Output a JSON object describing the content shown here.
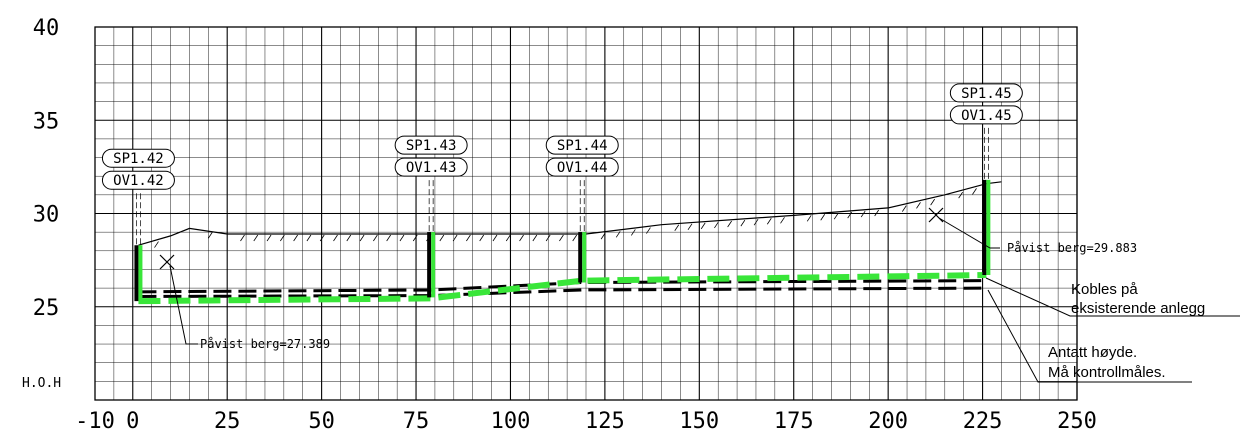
{
  "axes": {
    "x_range": [
      -10,
      250
    ],
    "y_range": [
      20,
      40
    ],
    "x_ticks": [
      "-10",
      "0",
      "25",
      "50",
      "75",
      "100",
      "125",
      "150",
      "175",
      "200",
      "225",
      "250"
    ],
    "y_ticks": [
      "40",
      "35",
      "30",
      "25"
    ],
    "y_unit_label": "H.O.H"
  },
  "manholes": [
    {
      "x": 1.5,
      "sp": "SP1.42",
      "ov": "OV1.42",
      "top": 28.3,
      "bottom": 25.3
    },
    {
      "x": 79,
      "sp": "SP1.43",
      "ov": "OV1.43",
      "top": 29.0,
      "bottom": 25.5
    },
    {
      "x": 119,
      "sp": "SP1.44",
      "ov": "OV1.44",
      "top": 29.0,
      "bottom": 26.3
    },
    {
      "x": 226,
      "sp": "SP1.45",
      "ov": "OV1.45",
      "top": 31.8,
      "bottom": 26.7
    }
  ],
  "terrain": [
    [
      1.5,
      28.3
    ],
    [
      10,
      28.8
    ],
    [
      15,
      29.2
    ],
    [
      25,
      28.9
    ],
    [
      120,
      28.9
    ],
    [
      140,
      29.4
    ],
    [
      175,
      29.9
    ],
    [
      200,
      30.3
    ],
    [
      215,
      31.0
    ],
    [
      226,
      31.6
    ],
    [
      230,
      31.7
    ]
  ],
  "pipes": {
    "green": [
      [
        1.5,
        25.3
      ],
      [
        79,
        25.45
      ],
      [
        119,
        26.4
      ],
      [
        226,
        26.7
      ]
    ],
    "black_upper": [
      [
        1.5,
        25.8
      ],
      [
        79,
        25.9
      ],
      [
        119,
        26.3
      ],
      [
        226,
        26.4
      ]
    ],
    "black_lower": [
      [
        1.5,
        25.55
      ],
      [
        79,
        25.6
      ],
      [
        119,
        25.9
      ],
      [
        226,
        26.0
      ]
    ]
  },
  "annotations": {
    "berg_left": "Påvist berg=27.389",
    "berg_right": "Påvist berg=29.883",
    "connect_line1": "Kobles på",
    "connect_line2": "eksisterende anlegg",
    "assumed_line1": "Antatt høyde.",
    "assumed_line2": "Må kontrollmåles."
  },
  "colors": {
    "grid": "#000000",
    "pipe_green": "#39e639",
    "pipe_black": "#000000"
  }
}
